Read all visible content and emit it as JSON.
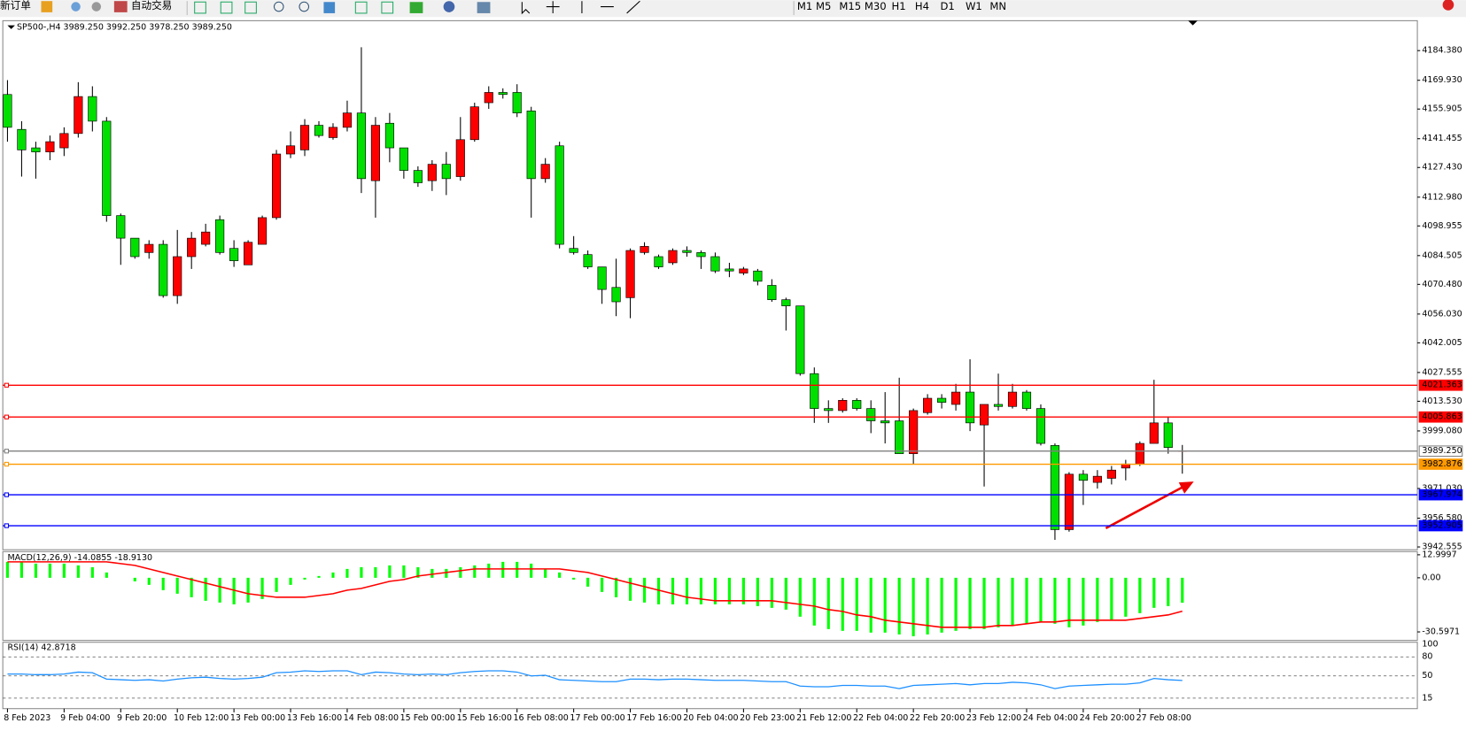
{
  "toolbar": {
    "new_order": "新订单",
    "auto_trading": "自动交易",
    "timeframes": [
      "M1",
      "M5",
      "M15",
      "M30",
      "H1",
      "H4",
      "D1",
      "W1",
      "MN"
    ]
  },
  "chart_data": [
    {
      "type": "candlestick",
      "title": "SP500-,H4  3989.250 3992.250 3978.250 3989.250",
      "up_color": "#ff0000",
      "down_color": "#00e000",
      "categories": [
        "8 Feb 2023",
        null,
        null,
        null,
        "9 Feb 04:00",
        null,
        null,
        null,
        "9 Feb 20:00",
        null,
        null,
        null,
        "10 Feb 12:00",
        null,
        null,
        null,
        "13 Feb 00:00",
        null,
        null,
        null,
        "13 Feb 16:00",
        null,
        null,
        null,
        "14 Feb 08:00",
        null,
        null,
        null,
        "15 Feb 00:00",
        null,
        null,
        null,
        "15 Feb 16:00",
        null,
        null,
        null,
        "16 Feb 08:00",
        null,
        null,
        null,
        "17 Feb 00:00",
        null,
        null,
        null,
        "17 Feb 16:00",
        null,
        null,
        null,
        "20 Feb 04:00",
        null,
        null,
        null,
        "20 Feb 23:00",
        null,
        null,
        null,
        "21 Feb 12:00",
        null,
        null,
        null,
        "22 Feb 04:00",
        null,
        null,
        null,
        "22 Feb 20:00",
        null,
        null,
        null,
        "23 Feb 12:00",
        null,
        null,
        null,
        "24 Feb 04:00",
        null,
        null,
        null,
        "24 Feb 20:00",
        null,
        null,
        null,
        "27 Feb 08:00",
        null,
        null,
        null
      ],
      "ohlc": [
        [
          4163,
          4170,
          4140,
          4147
        ],
        [
          4146,
          4150,
          4123,
          4136
        ],
        [
          4137,
          4140,
          4122,
          4135
        ],
        [
          4135,
          4143,
          4131,
          4140
        ],
        [
          4137,
          4147,
          4133,
          4144
        ],
        [
          4144,
          4169,
          4142,
          4162
        ],
        [
          4162,
          4167,
          4145,
          4150
        ],
        [
          4150,
          4152,
          4101,
          4104
        ],
        [
          4104,
          4105,
          4080,
          4093
        ],
        [
          4093,
          4093,
          4083,
          4084
        ],
        [
          4086,
          4092,
          4083,
          4090
        ],
        [
          4090,
          4092,
          4064,
          4065
        ],
        [
          4065,
          4097,
          4061,
          4084
        ],
        [
          4084,
          4096,
          4078,
          4093
        ],
        [
          4090,
          4100,
          4089,
          4096
        ],
        [
          4102,
          4104,
          4085,
          4086
        ],
        [
          4088,
          4092,
          4079,
          4082
        ],
        [
          4080,
          4092,
          4080,
          4091
        ],
        [
          4090,
          4104,
          4090,
          4103
        ],
        [
          4103,
          4136,
          4102,
          4134
        ],
        [
          4134,
          4145,
          4132,
          4138
        ],
        [
          4136,
          4151,
          4133,
          4148
        ],
        [
          4148,
          4150,
          4142,
          4143
        ],
        [
          4142,
          4149,
          4141,
          4147
        ],
        [
          4147,
          4160,
          4145,
          4154
        ],
        [
          4154,
          4186,
          4115,
          4122
        ],
        [
          4121,
          4152,
          4103,
          4148
        ],
        [
          4149,
          4154,
          4130,
          4137
        ],
        [
          4137,
          4137,
          4122,
          4126
        ],
        [
          4126,
          4128,
          4118,
          4120
        ],
        [
          4121,
          4131,
          4116,
          4129
        ],
        [
          4129,
          4135,
          4114,
          4122
        ],
        [
          4123,
          4152,
          4121,
          4141
        ],
        [
          4141,
          4159,
          4140,
          4157
        ],
        [
          4159,
          4167,
          4156,
          4164
        ],
        [
          4164,
          4166,
          4161,
          4163
        ],
        [
          4164,
          4168,
          4152,
          4154
        ],
        [
          4155,
          4157,
          4103,
          4122
        ],
        [
          4122,
          4132,
          4120,
          4129
        ],
        [
          4138,
          4140,
          4088,
          4090
        ],
        [
          4088,
          4094,
          4085,
          4086
        ],
        [
          4085,
          4087,
          4078,
          4079
        ],
        [
          4079,
          4079,
          4061,
          4068
        ],
        [
          4069,
          4083,
          4055,
          4062
        ],
        [
          4064,
          4088,
          4054,
          4087
        ],
        [
          4086,
          4091,
          4085,
          4089
        ],
        [
          4084,
          4085,
          4078,
          4079
        ],
        [
          4081,
          4088,
          4080,
          4087
        ],
        [
          4087,
          4089,
          4084,
          4086
        ],
        [
          4086,
          4087,
          4078,
          4084
        ],
        [
          4084,
          4086,
          4076,
          4077
        ],
        [
          4078,
          4081,
          4074,
          4077
        ],
        [
          4076,
          4079,
          4075,
          4078
        ],
        [
          4077,
          4078,
          4070,
          4072
        ],
        [
          4070,
          4073,
          4062,
          4063
        ],
        [
          4063,
          4064,
          4048,
          4060
        ],
        [
          4060,
          4060,
          4026,
          4027
        ],
        [
          4027,
          4030,
          4003,
          4010
        ],
        [
          4010,
          4014,
          4003,
          4009
        ],
        [
          4009,
          4015,
          4008,
          4014
        ],
        [
          4014,
          4015,
          4009,
          4010
        ],
        [
          4010,
          4014,
          3998,
          4004
        ],
        [
          4004,
          4018,
          3993,
          4003
        ],
        [
          4004,
          4025,
          3988,
          3988
        ],
        [
          3988,
          4010,
          3983,
          4009
        ],
        [
          4008,
          4017,
          4007,
          4015
        ],
        [
          4015,
          4017,
          4010,
          4013
        ],
        [
          4012,
          4022,
          4009,
          4018
        ],
        [
          4018,
          4034,
          3999,
          4003
        ],
        [
          4002,
          4012,
          3972,
          4012
        ],
        [
          4012,
          4027,
          4009,
          4011
        ],
        [
          4011,
          4022,
          4010,
          4018
        ],
        [
          4018,
          4019,
          4009,
          4010
        ],
        [
          4010,
          4012,
          3992,
          3993
        ],
        [
          3992,
          3993,
          3946,
          3951
        ],
        [
          3951,
          3979,
          3950,
          3978
        ],
        [
          3978,
          3980,
          3963,
          3975
        ],
        [
          3974,
          3980,
          3971,
          3977
        ],
        [
          3976,
          3982,
          3973,
          3980
        ],
        [
          3981,
          3985,
          3975,
          3983
        ],
        [
          3983,
          3994,
          3982,
          3993
        ],
        [
          3993,
          4024,
          3993,
          4003
        ],
        [
          4003,
          4006,
          3988,
          3991
        ],
        [
          3989.25,
          3992.25,
          3978.25,
          3989.25
        ]
      ],
      "ylim": [
        3941.2,
        4198.95
      ],
      "yticks": [
        {
          "value": 4184.38,
          "label": "4184.380"
        },
        {
          "value": 4169.93,
          "label": "4169.930"
        },
        {
          "value": 4155.905,
          "label": "4155.905"
        },
        {
          "value": 4141.455,
          "label": "4141.455"
        },
        {
          "value": 4127.43,
          "label": "4127.430"
        },
        {
          "value": 4112.98,
          "label": "4112.980"
        },
        {
          "value": 4098.955,
          "label": "4098.955"
        },
        {
          "value": 4084.505,
          "label": "4084.505"
        },
        {
          "value": 4070.48,
          "label": "4070.480"
        },
        {
          "value": 4056.03,
          "label": "4056.030"
        },
        {
          "value": 4042.005,
          "label": "4042.005"
        },
        {
          "value": 4027.555,
          "label": "4027.555"
        },
        {
          "value": 4013.53,
          "label": "4013.530"
        },
        {
          "value": 3999.08,
          "label": "3999.080"
        },
        {
          "value": 3971.03,
          "label": "3971.030"
        },
        {
          "value": 3956.58,
          "label": "3956.580"
        },
        {
          "value": 3942.555,
          "label": "3942.555"
        }
      ],
      "levels": [
        {
          "value": 4021.363,
          "label": "4021.363",
          "color": "#ff0000",
          "text_color": "#ffffff"
        },
        {
          "value": 4005.863,
          "label": "4005.863",
          "color": "#ff0000",
          "text_color": "#ffffff"
        },
        {
          "value": 3989.25,
          "label": "3989.250",
          "color": "#808080",
          "text_color": "#000000"
        },
        {
          "value": 3982.876,
          "label": "3982.876",
          "color": "#ff9900",
          "text_color": "#ffffff"
        },
        {
          "value": 3967.974,
          "label": "3967.974",
          "color": "#0000ff",
          "text_color": "#ffffff"
        },
        {
          "value": 3952.905,
          "label": "3952.905",
          "color": "#0000ff",
          "text_color": "#ffffff"
        }
      ]
    },
    {
      "type": "macd",
      "title": "MACD(12,26,9) -14.0855 -18.9130",
      "ylim": [
        -35.4,
        14.8
      ],
      "yticks": [
        {
          "value": 12.9997,
          "label": "12.9997"
        },
        {
          "value": 0,
          "label": "0.00"
        },
        {
          "value": -30.5971,
          "label": "-30.5971"
        }
      ],
      "series": [
        {
          "name": "MACD",
          "color": "#00ff00",
          "values": [
            9,
            9,
            8,
            8,
            8,
            7,
            6,
            3,
            0,
            -2,
            -4,
            -7,
            -9,
            -11,
            -13,
            -14,
            -15,
            -14,
            -12,
            -8,
            -4,
            -1,
            1,
            3,
            5,
            6,
            6,
            7,
            7,
            6,
            5,
            5,
            6,
            7,
            8,
            9,
            9,
            8,
            5,
            3,
            -1,
            -5,
            -8,
            -11,
            -13,
            -14,
            -15,
            -15,
            -15,
            -15,
            -15,
            -15,
            -15,
            -16,
            -17,
            -18,
            -22,
            -27,
            -29,
            -30,
            -30,
            -31,
            -31,
            -32,
            -33,
            -32,
            -31,
            -30,
            -29,
            -29,
            -28,
            -27,
            -26,
            -25,
            -26,
            -28,
            -27,
            -25,
            -24,
            -22,
            -20,
            -17,
            -16,
            -14.0855
          ]
        },
        {
          "name": "Signal",
          "color": "#ff0000",
          "values": [
            9,
            9,
            9,
            9,
            9,
            9,
            9,
            9,
            8,
            7,
            5,
            3,
            1,
            -1,
            -3,
            -5,
            -7,
            -9,
            -10,
            -11,
            -11,
            -11,
            -10,
            -9,
            -7,
            -6,
            -4,
            -2,
            -1,
            1,
            2,
            3,
            4,
            5,
            5,
            5,
            5,
            5,
            5,
            5,
            4,
            3,
            1,
            -1,
            -3,
            -5,
            -7,
            -9,
            -11,
            -12,
            -13,
            -13,
            -13,
            -13,
            -13,
            -14,
            -15,
            -16,
            -18,
            -19,
            -21,
            -22,
            -24,
            -25,
            -26,
            -27,
            -28,
            -28,
            -28,
            -28,
            -27,
            -27,
            -26,
            -25,
            -25,
            -24,
            -24,
            -24,
            -24,
            -24,
            -23,
            -22,
            -21,
            -18.913
          ]
        }
      ]
    },
    {
      "type": "line",
      "title": "RSI(14) 42.8718",
      "color": "#1e90ff",
      "ylim": [
        0,
        100
      ],
      "yticks": [
        100,
        80,
        50,
        15
      ],
      "values": [
        53,
        53,
        52,
        52,
        53,
        56,
        55,
        45,
        44,
        43,
        44,
        42,
        45,
        47,
        48,
        46,
        45,
        46,
        48,
        55,
        56,
        58,
        57,
        58,
        58,
        52,
        56,
        55,
        53,
        52,
        53,
        52,
        55,
        57,
        58,
        58,
        56,
        50,
        51,
        44,
        43,
        42,
        41,
        41,
        45,
        45,
        44,
        45,
        45,
        44,
        43,
        43,
        43,
        42,
        41,
        41,
        34,
        33,
        33,
        35,
        35,
        34,
        34,
        30,
        35,
        36,
        37,
        38,
        36,
        38,
        38,
        40,
        39,
        36,
        30,
        34,
        35,
        36,
        37,
        37,
        39,
        46,
        44,
        42.8718
      ]
    }
  ]
}
